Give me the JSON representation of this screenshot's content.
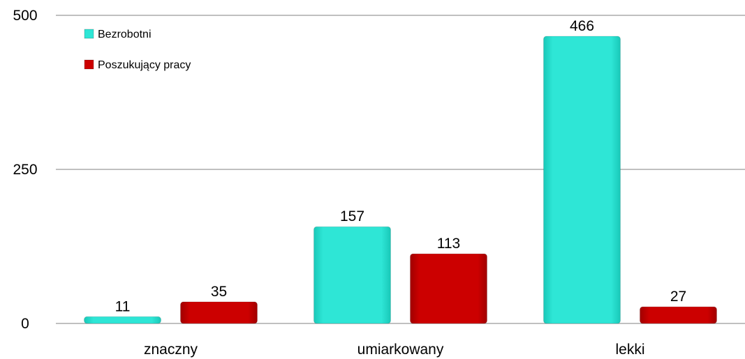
{
  "chart_data": {
    "type": "bar",
    "categories": [
      "znaczny",
      "umiarkowany",
      "lekki"
    ],
    "series": [
      {
        "name": "Bezrobotni",
        "values": [
          11,
          157,
          466
        ],
        "color": "#2ee6d6"
      },
      {
        "name": "Poszukujący pracy",
        "values": [
          35,
          113,
          27
        ],
        "color": "#cc0000"
      }
    ],
    "yticks": [
      0,
      250,
      500
    ],
    "ylim": [
      0,
      500
    ],
    "grid": true,
    "legend": "top-left"
  }
}
